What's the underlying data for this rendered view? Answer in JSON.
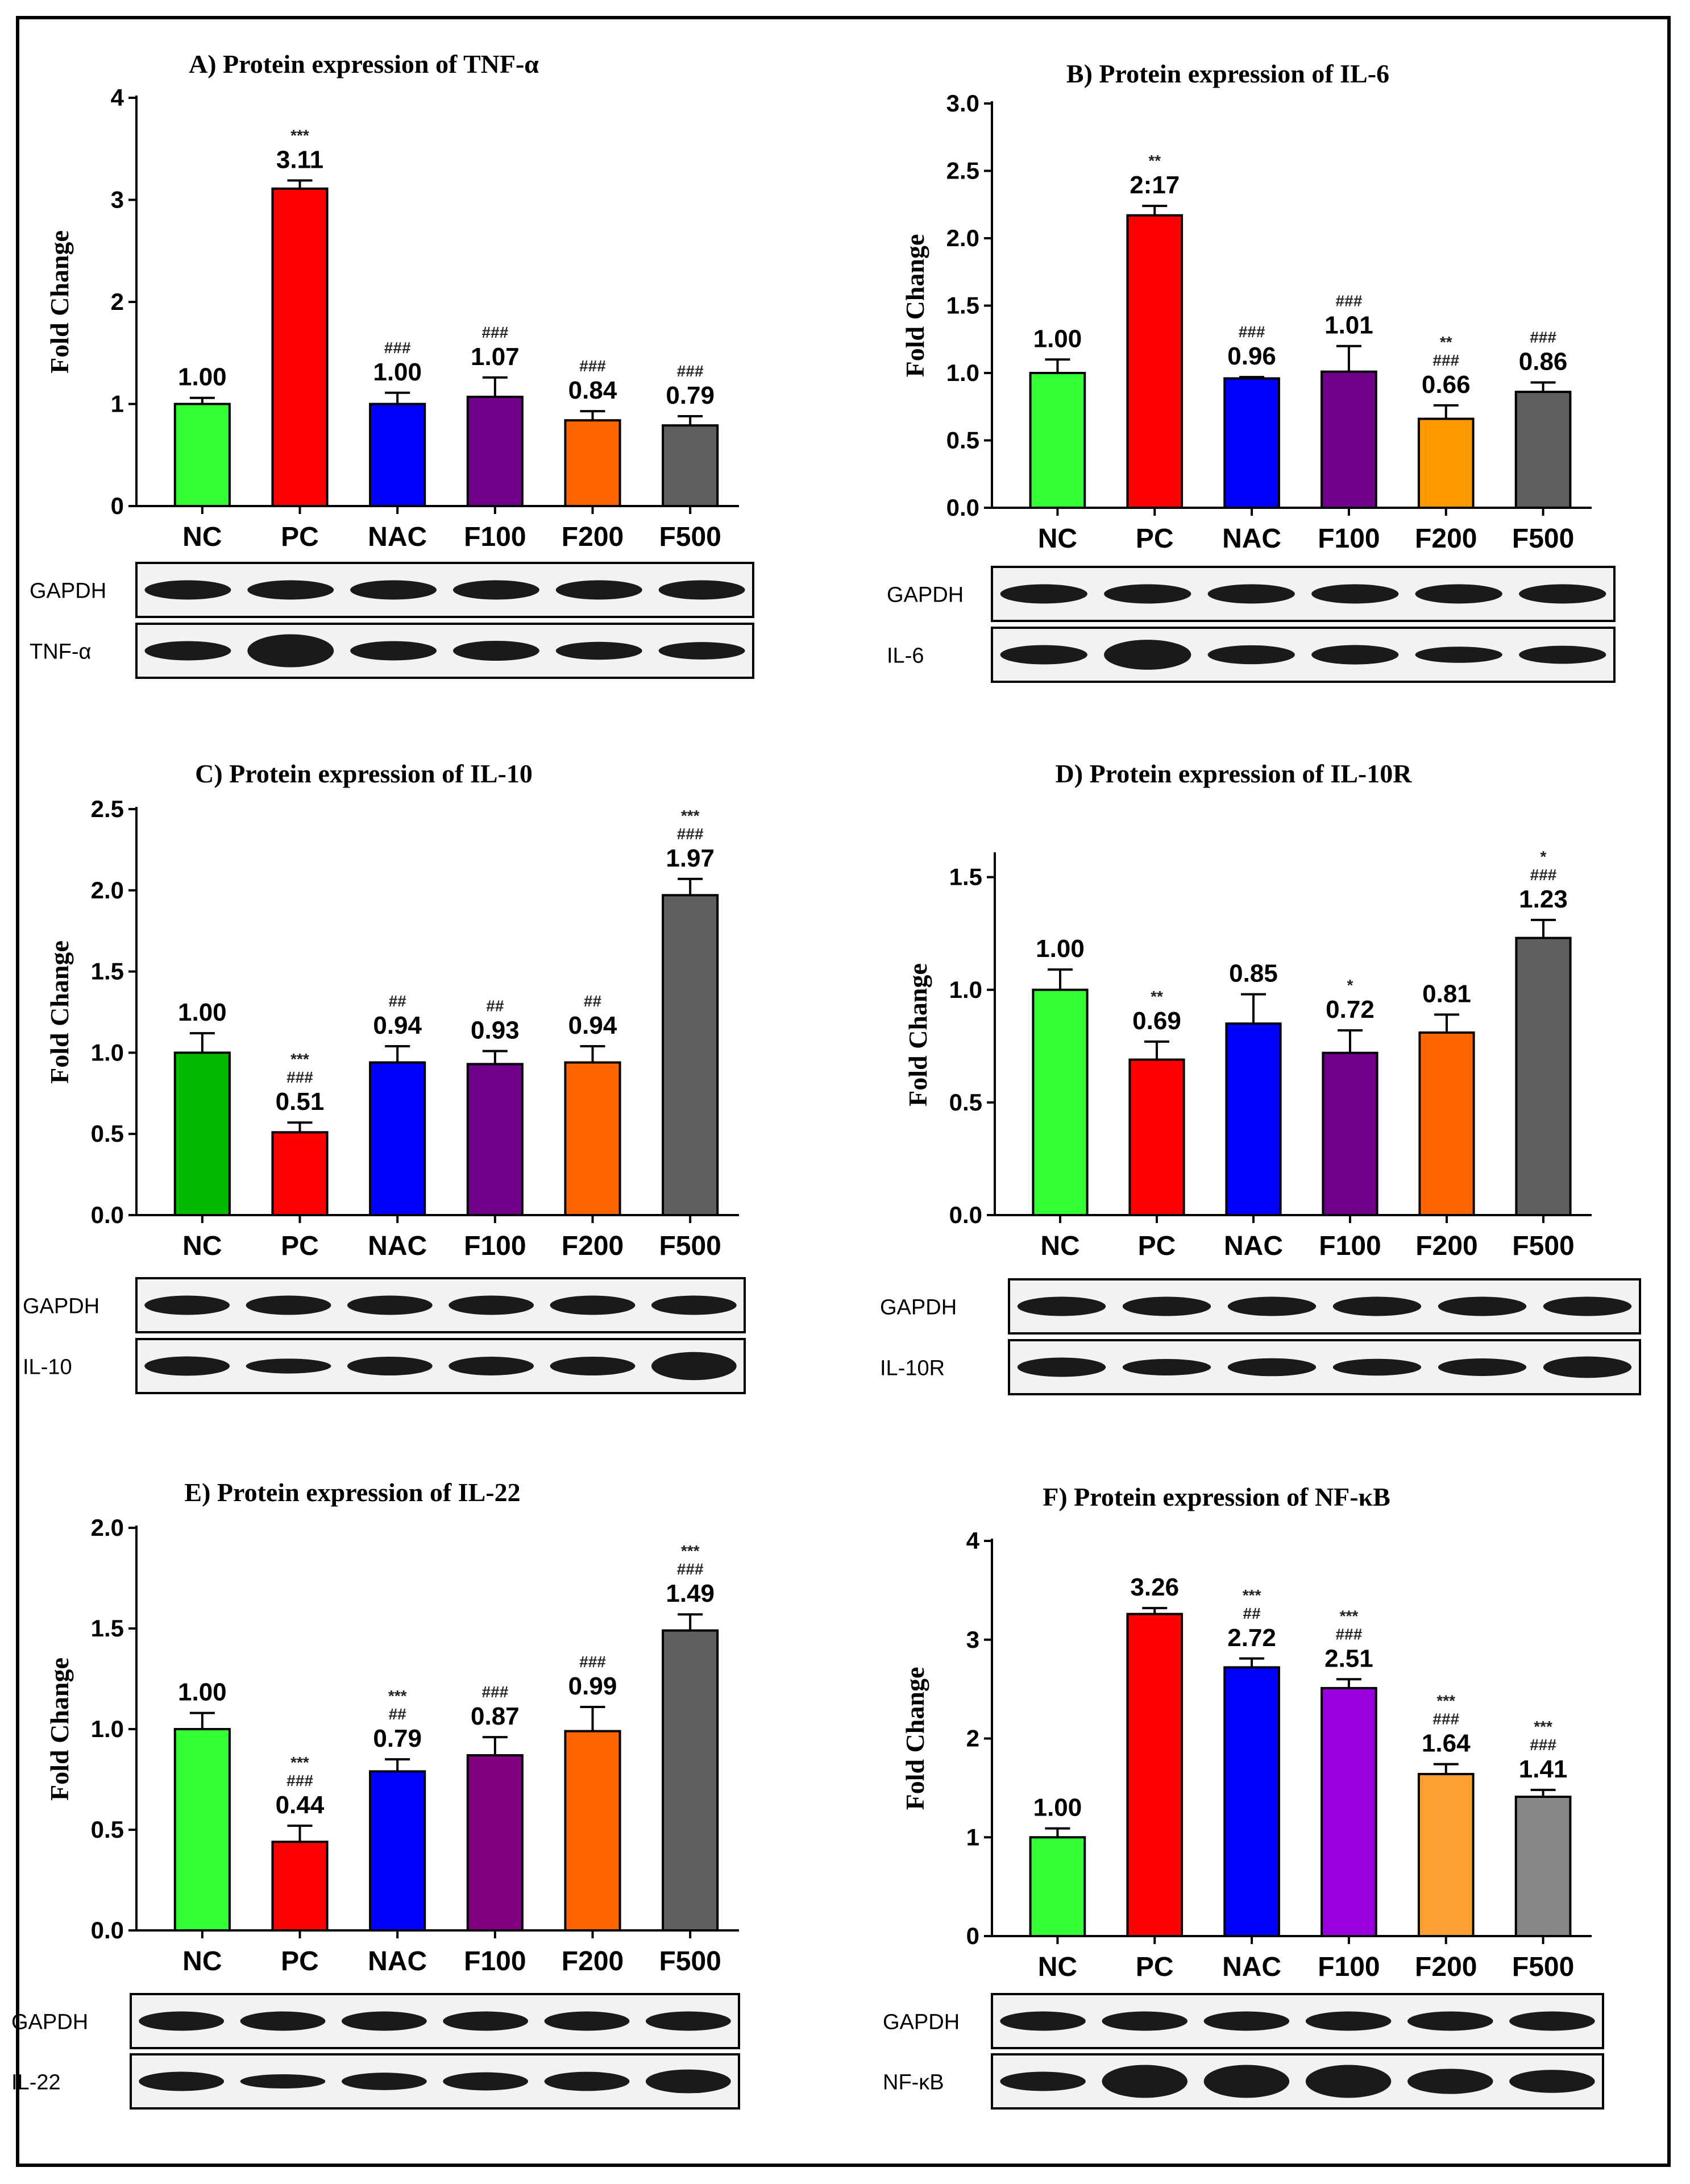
{
  "chart_data": [
    {
      "type": "bar",
      "title": "A) Protein expression of TNF-α",
      "ylabel": "Fold Change",
      "categories": [
        "NC",
        "PC",
        "NAC",
        "F100",
        "F200",
        "F500"
      ],
      "values": [
        1.0,
        3.11,
        1.0,
        1.07,
        0.84,
        0.79
      ],
      "errors": [
        0.06,
        0.08,
        0.11,
        0.19,
        0.09,
        0.09
      ],
      "value_labels": [
        "1.00",
        "3.11",
        "1.00",
        "1.07",
        "0.84",
        "0.79"
      ],
      "significance": [
        [],
        [
          "***"
        ],
        [
          "###"
        ],
        [
          "###"
        ],
        [
          "###"
        ],
        [
          "###"
        ]
      ],
      "colors": [
        "#33ff33",
        "#ff0000",
        "#0000ff",
        "#72008c",
        "#ff6600",
        "#5f5f5f"
      ],
      "ylim": [
        0,
        4
      ],
      "yticks": [
        "0",
        "1",
        "2",
        "3",
        "4"
      ],
      "blots": [
        "GAPDH",
        "TNF-α"
      ]
    },
    {
      "type": "bar",
      "title": "B) Protein expression of IL-6",
      "ylabel": "Fold Change",
      "categories": [
        "NC",
        "PC",
        "NAC",
        "F100",
        "F200",
        "F500"
      ],
      "values": [
        1.0,
        2.17,
        0.96,
        1.01,
        0.66,
        0.86
      ],
      "errors": [
        0.1,
        0.07,
        0.01,
        0.19,
        0.1,
        0.07
      ],
      "value_labels": [
        "1.00",
        "2:17",
        "0.96",
        "1.01",
        "0.66",
        "0.86"
      ],
      "significance": [
        [],
        [
          "**"
        ],
        [
          "###"
        ],
        [
          "###"
        ],
        [
          "**",
          "###"
        ],
        [
          "###"
        ]
      ],
      "colors": [
        "#33ff33",
        "#ff0000",
        "#0000ff",
        "#72008c",
        "#ff9900",
        "#5f5f5f"
      ],
      "ylim": [
        0,
        3
      ],
      "yticks": [
        "0.0",
        "0.5",
        "1.0",
        "1.5",
        "2.0",
        "2.5",
        "3.0"
      ],
      "blots": [
        "GAPDH",
        "IL-6"
      ]
    },
    {
      "type": "bar",
      "title": "C) Protein expression of IL-10",
      "ylabel": "Fold Change",
      "categories": [
        "NC",
        "PC",
        "NAC",
        "F100",
        "F200",
        "F500"
      ],
      "values": [
        1.0,
        0.51,
        0.94,
        0.93,
        0.94,
        1.97
      ],
      "errors": [
        0.12,
        0.06,
        0.1,
        0.08,
        0.1,
        0.1
      ],
      "value_labels": [
        "1.00",
        "0.51",
        "0.94",
        "0.93",
        "0.94",
        "1.97"
      ],
      "significance": [
        [],
        [
          "***",
          "###"
        ],
        [
          "##"
        ],
        [
          "##"
        ],
        [
          "##"
        ],
        [
          "***",
          "###"
        ]
      ],
      "colors": [
        "#00bb00",
        "#ff0000",
        "#0000ff",
        "#72008c",
        "#ff6600",
        "#5f5f5f"
      ],
      "ylim": [
        0,
        2.5
      ],
      "yticks": [
        "0.0",
        "0.5",
        "1.0",
        "1.5",
        "2.0",
        "2.5"
      ],
      "blots": [
        "GAPDH",
        "IL-10"
      ]
    },
    {
      "type": "bar",
      "title": "D) Protein expression of  IL-10R",
      "ylabel": "Fold Change",
      "categories": [
        "NC",
        "PC",
        "NAC",
        "F100",
        "F200",
        "F500"
      ],
      "values": [
        1.0,
        0.69,
        0.85,
        0.72,
        0.81,
        1.23
      ],
      "errors": [
        0.09,
        0.08,
        0.13,
        0.1,
        0.08,
        0.08
      ],
      "value_labels": [
        "1.00",
        "0.69",
        "0.85",
        "0.72",
        "0.81",
        "1.23"
      ],
      "significance": [
        [],
        [
          "**"
        ],
        [],
        [
          "*"
        ],
        [],
        [
          "*",
          "###"
        ]
      ],
      "colors": [
        "#33ff33",
        "#ff0000",
        "#0000ff",
        "#72008c",
        "#ff6600",
        "#5f5f5f"
      ],
      "ylim": [
        0,
        1.6
      ],
      "yticks": [
        "0.0",
        "0.5",
        "1.0",
        "1.5"
      ],
      "blots": [
        "GAPDH",
        "IL-10R"
      ]
    },
    {
      "type": "bar",
      "title": "E) Protein expression of IL-22",
      "ylabel": "Fold Change",
      "categories": [
        "NC",
        "PC",
        "NAC",
        "F100",
        "F200",
        "F500"
      ],
      "values": [
        1.0,
        0.44,
        0.79,
        0.87,
        0.99,
        1.49
      ],
      "errors": [
        0.08,
        0.08,
        0.06,
        0.09,
        0.12,
        0.08
      ],
      "value_labels": [
        "1.00",
        "0.44",
        "0.79",
        "0.87",
        "0.99",
        "1.49"
      ],
      "significance": [
        [],
        [
          "***",
          "###"
        ],
        [
          "***",
          "##"
        ],
        [
          "###"
        ],
        [
          "###"
        ],
        [
          "***",
          "###"
        ]
      ],
      "colors": [
        "#33ff33",
        "#ff0000",
        "#0000ff",
        "#800080",
        "#ff6600",
        "#5f5f5f"
      ],
      "ylim": [
        0,
        2
      ],
      "yticks": [
        "0.0",
        "0.5",
        "1.0",
        "1.5",
        "2.0"
      ],
      "blots": [
        "GAPDH",
        "IL-22"
      ]
    },
    {
      "type": "bar",
      "title": "F) Protein expression of NF-κB",
      "ylabel": "Fold Change",
      "categories": [
        "NC",
        "PC",
        "NAC",
        "F100",
        "F200",
        "F500"
      ],
      "values": [
        1.0,
        3.26,
        2.72,
        2.51,
        1.64,
        1.41
      ],
      "errors": [
        0.09,
        0.06,
        0.09,
        0.09,
        0.1,
        0.07
      ],
      "value_labels": [
        "1.00",
        "3.26",
        "2.72",
        "2.51",
        "1.64",
        "1.41"
      ],
      "significance": [
        [],
        [],
        [
          "***",
          "##"
        ],
        [
          "***",
          "###"
        ],
        [
          "***",
          "###"
        ],
        [
          "***",
          "###"
        ]
      ],
      "colors": [
        "#33ff33",
        "#ff0000",
        "#0000ff",
        "#9900dd",
        "#ffa033",
        "#888888"
      ],
      "ylim": [
        0,
        4
      ],
      "yticks": [
        "0",
        "1",
        "2",
        "3",
        "4"
      ],
      "blots": [
        "GAPDH",
        "NF-κB"
      ]
    }
  ]
}
